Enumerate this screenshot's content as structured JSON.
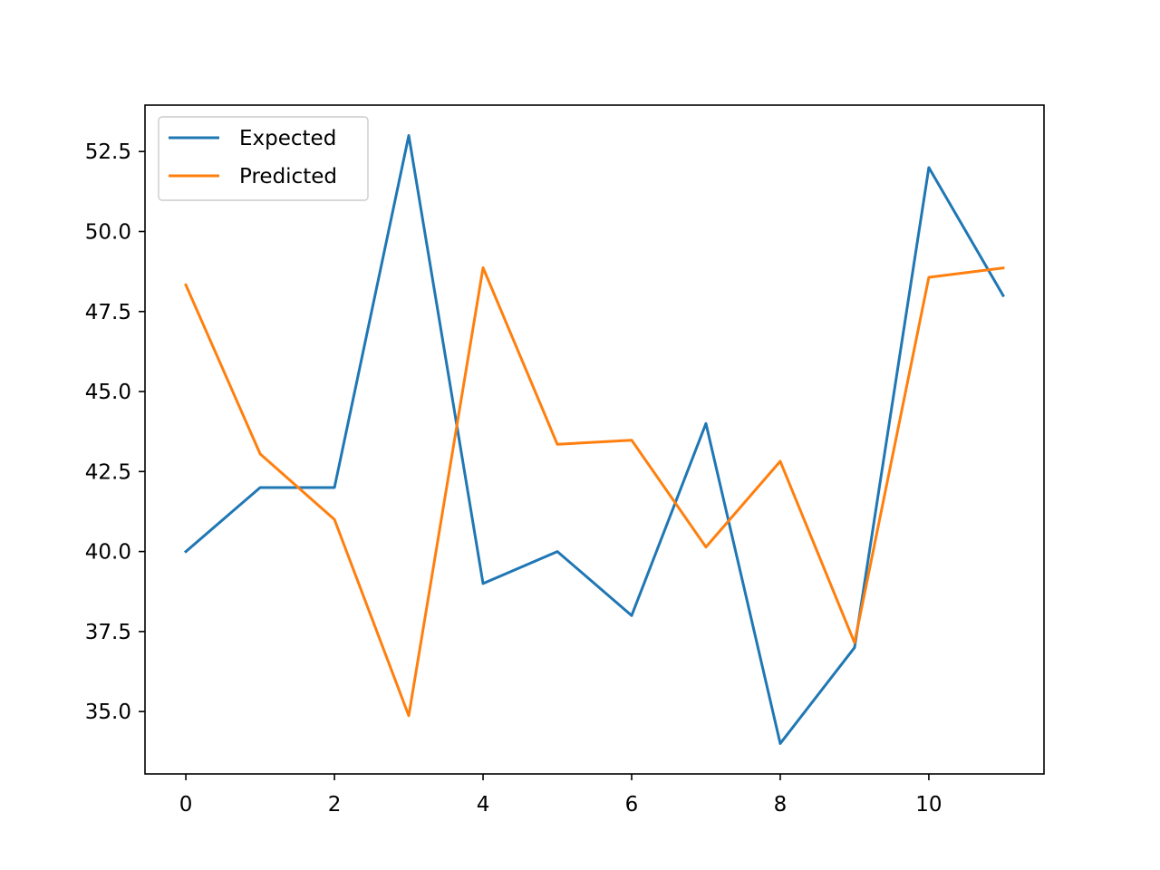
{
  "chart_data": {
    "type": "line",
    "title": "",
    "xlabel": "",
    "ylabel": "",
    "xlim": [
      -0.55,
      11.55
    ],
    "ylim": [
      33.05,
      53.95
    ],
    "x": [
      0,
      1,
      2,
      3,
      4,
      5,
      6,
      7,
      8,
      9,
      10,
      11
    ],
    "series": [
      {
        "name": "Expected",
        "color": "#1f77b4",
        "values": [
          40.0,
          42.0,
          42.0,
          53.0,
          39.0,
          40.0,
          38.0,
          44.0,
          34.0,
          37.0,
          52.0,
          48.0
        ]
      },
      {
        "name": "Predicted",
        "color": "#ff7f0e",
        "values": [
          48.33,
          43.05,
          41.0,
          34.87,
          48.87,
          43.35,
          43.48,
          40.14,
          42.82,
          37.15,
          48.57,
          48.86
        ]
      }
    ],
    "x_ticks": [
      {
        "value": 0,
        "label": "0"
      },
      {
        "value": 2,
        "label": "2"
      },
      {
        "value": 4,
        "label": "4"
      },
      {
        "value": 6,
        "label": "6"
      },
      {
        "value": 8,
        "label": "8"
      },
      {
        "value": 10,
        "label": "10"
      }
    ],
    "y_ticks": [
      {
        "value": 35.0,
        "label": "35.0"
      },
      {
        "value": 37.5,
        "label": "37.5"
      },
      {
        "value": 40.0,
        "label": "40.0"
      },
      {
        "value": 42.5,
        "label": "42.5"
      },
      {
        "value": 45.0,
        "label": "45.0"
      },
      {
        "value": 47.5,
        "label": "47.5"
      },
      {
        "value": 50.0,
        "label": "50.0"
      },
      {
        "value": 52.5,
        "label": "52.5"
      }
    ],
    "grid": false,
    "legend": "upper left"
  }
}
